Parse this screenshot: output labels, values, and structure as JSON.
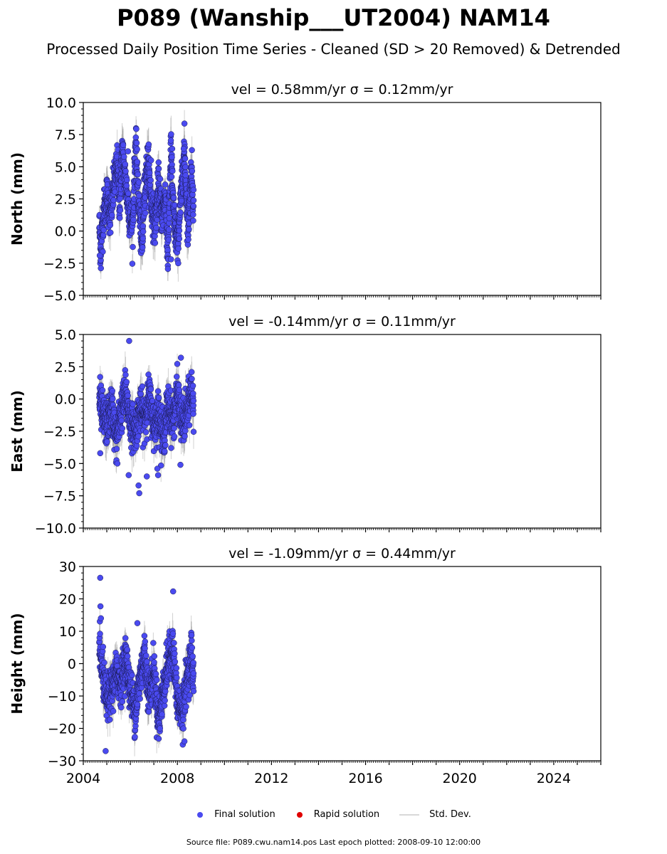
{
  "title": "P089 (Wanship___UT2004) NAM14",
  "subtitle": "Processed Daily Position Time Series - Cleaned (SD > 20 Removed) & Detrended",
  "source_note": "Source file: P089.cwu.nam14.pos  Last epoch plotted: 2008-09-10 12:00:00",
  "legend": [
    {
      "label": "Final solution",
      "color": "#4a4af0",
      "kind": "dot"
    },
    {
      "label": "Rapid solution",
      "color": "#e00000",
      "kind": "dot"
    },
    {
      "label": "Std. Dev.",
      "color": "#cccccc",
      "kind": "line"
    }
  ],
  "colors": {
    "final": "#4a4af0",
    "rapid": "#e00000",
    "stddev": "#9a9a9a",
    "edge": "#1a1a50"
  },
  "chart_data": [
    {
      "type": "scatter",
      "panel_title": "vel = 0.58mm/yr   σ = 0.12mm/yr",
      "ylabel": "North (mm)",
      "xlim": [
        2004,
        2026
      ],
      "ylim": [
        -5,
        10
      ],
      "yticks": [
        -5.0,
        -2.5,
        0.0,
        2.5,
        5.0,
        7.5,
        10.0
      ],
      "ytick_labels": [
        "−5.0",
        "−2.5",
        "0.0",
        "2.5",
        "5.0",
        "7.5",
        "10.0"
      ],
      "x_range_data": [
        2004.68,
        2008.69
      ],
      "series": [
        {
          "x": [
            2004.68,
            2004.75,
            2004.85,
            2005.0,
            2005.15,
            2005.3,
            2005.45,
            2005.55,
            2005.65,
            2005.8,
            2005.95,
            2006.1,
            2006.22,
            2006.35,
            2006.5,
            2006.6,
            2006.75,
            2006.9,
            2007.05,
            2007.2,
            2007.35,
            2007.5,
            2007.6,
            2007.72,
            2007.85,
            2008.0,
            2008.15,
            2008.3,
            2008.45,
            2008.6,
            2008.69
          ],
          "y": [
            0.5,
            -1.8,
            1.2,
            2.8,
            1.0,
            3.5,
            5.2,
            2.0,
            6.2,
            3.8,
            1.5,
            0.2,
            6.8,
            2.5,
            -1.5,
            3.2,
            5.5,
            2.0,
            0.5,
            3.5,
            1.2,
            2.8,
            -2.2,
            6.4,
            1.0,
            -1.2,
            2.5,
            6.4,
            0.0,
            4.9,
            2.0
          ]
        }
      ],
      "outliers": [
        {
          "x": 2004.7,
          "y": -1.9
        },
        {
          "x": 2005.9,
          "y": 6.2
        },
        {
          "x": 2006.27,
          "y": 6.85
        },
        {
          "x": 2006.88,
          "y": 5.5
        },
        {
          "x": 2007.78,
          "y": 6.4
        },
        {
          "x": 2008.27,
          "y": 6.4
        },
        {
          "x": 2007.73,
          "y": -2.2
        }
      ]
    },
    {
      "type": "scatter",
      "panel_title": "vel = -0.14mm/yr   σ = 0.11mm/yr",
      "ylabel": "East (mm)",
      "xlim": [
        2004,
        2026
      ],
      "ylim": [
        -10,
        5
      ],
      "yticks": [
        -10.0,
        -7.5,
        -5.0,
        -2.5,
        0.0,
        2.5,
        5.0
      ],
      "ytick_labels": [
        "−10.0",
        "−7.5",
        "−5.0",
        "−2.5",
        "0.0",
        "2.5",
        "5.0"
      ],
      "x_range_data": [
        2004.68,
        2008.69
      ],
      "series": [
        {
          "x": [
            2004.68,
            2004.8,
            2005.0,
            2005.2,
            2005.4,
            2005.6,
            2005.8,
            2006.0,
            2006.2,
            2006.4,
            2006.6,
            2006.8,
            2007.0,
            2007.2,
            2007.4,
            2007.6,
            2007.8,
            2008.0,
            2008.2,
            2008.4,
            2008.6,
            2008.69
          ],
          "y": [
            0.2,
            -1.2,
            -2.0,
            -0.5,
            -3.2,
            -1.0,
            0.5,
            -1.8,
            -2.5,
            -0.8,
            -1.5,
            0.3,
            -2.2,
            -1.0,
            -3.0,
            -0.5,
            -1.8,
            0.5,
            -2.0,
            -1.2,
            0.8,
            -0.5
          ]
        }
      ],
      "outliers": [
        {
          "x": 2005.95,
          "y": 4.5
        },
        {
          "x": 2004.72,
          "y": -4.2
        },
        {
          "x": 2005.93,
          "y": -5.9
        },
        {
          "x": 2006.35,
          "y": -6.7
        },
        {
          "x": 2006.38,
          "y": -7.3
        },
        {
          "x": 2006.7,
          "y": -6.0
        },
        {
          "x": 2007.15,
          "y": -5.4
        },
        {
          "x": 2007.18,
          "y": -5.9
        },
        {
          "x": 2008.13,
          "y": -5.1
        },
        {
          "x": 2008.15,
          "y": 3.2
        },
        {
          "x": 2005.45,
          "y": -5.0
        }
      ]
    },
    {
      "type": "scatter",
      "panel_title": "vel = -1.09mm/yr   σ = 0.44mm/yr",
      "ylabel": "Height (mm)",
      "xlim": [
        2004,
        2026
      ],
      "ylim": [
        -30,
        30
      ],
      "xticks": [
        2004,
        2008,
        2012,
        2016,
        2020,
        2024
      ],
      "xtick_labels": [
        "2004",
        "2008",
        "2012",
        "2016",
        "2020",
        "2024"
      ],
      "yticks": [
        -30,
        -20,
        -10,
        0,
        10,
        20,
        30
      ],
      "ytick_labels": [
        "−30",
        "−20",
        "−10",
        "0",
        "10",
        "20",
        "30"
      ],
      "x_range_data": [
        2004.68,
        2008.69
      ],
      "series": [
        {
          "x": [
            2004.68,
            2004.8,
            2005.0,
            2005.2,
            2005.4,
            2005.6,
            2005.8,
            2006.0,
            2006.2,
            2006.4,
            2006.6,
            2006.8,
            2007.0,
            2007.2,
            2007.4,
            2007.6,
            2007.8,
            2008.0,
            2008.2,
            2008.4,
            2008.6,
            2008.69
          ],
          "y": [
            5.0,
            -2.0,
            -12.0,
            -8.0,
            -3.0,
            -6.0,
            2.0,
            -8.0,
            -15.0,
            -5.0,
            3.0,
            -10.0,
            -2.0,
            -18.0,
            -8.0,
            0.0,
            5.0,
            -12.0,
            -15.0,
            -5.0,
            3.0,
            -6.0
          ]
        }
      ],
      "outliers": [
        {
          "x": 2004.72,
          "y": 26.5
        },
        {
          "x": 2004.73,
          "y": 17.7
        },
        {
          "x": 2004.75,
          "y": 14.0
        },
        {
          "x": 2007.82,
          "y": 22.3
        },
        {
          "x": 2004.95,
          "y": -27.0
        },
        {
          "x": 2006.3,
          "y": 12.5
        },
        {
          "x": 2008.23,
          "y": -25.0
        },
        {
          "x": 2008.3,
          "y": -24.0
        }
      ]
    }
  ]
}
